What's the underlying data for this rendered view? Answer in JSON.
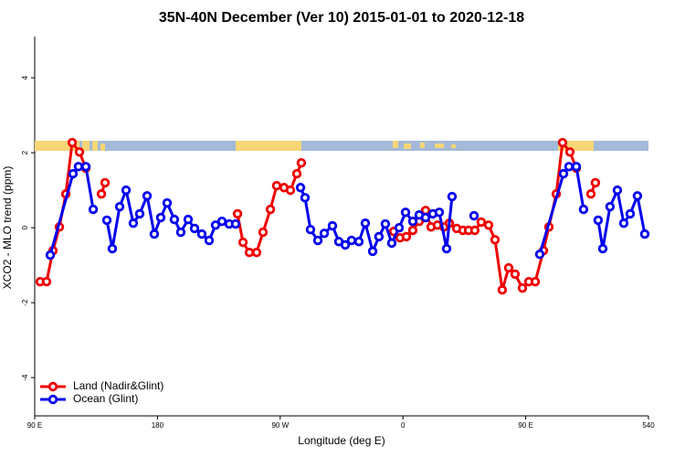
{
  "chart_data": {
    "type": "line",
    "title": "35N-40N December (Ver 10)   2015-01-01 to 2020-12-18",
    "x_label": "Longitude (deg E)",
    "y_label": "XCO2 - MLO trend (ppm)",
    "xlim": [
      90,
      540
    ],
    "xticks": [
      {
        "value": 90,
        "label": "90 E"
      },
      180,
      {
        "value": 270,
        "label": "90 W"
      },
      {
        "value": 360,
        "label": "0"
      },
      {
        "value": 450,
        "label": "90 E"
      },
      540
    ],
    "ylim": [
      -5.02,
      5.1
    ],
    "yticks": [
      -4,
      -2,
      0,
      2,
      4
    ],
    "legend": "bottom-left",
    "series": [
      {
        "name": "Land (Nadir&Glint)",
        "color": "#ee0000",
        "x": [
          94.0,
          98.7,
          103.4,
          108.1,
          112.8,
          117.5,
          122.8,
          127.5,
          132,
          138.9,
          141.6,
          200,
          238.7,
          242.7,
          247.4,
          252.7,
          257.4,
          262.8,
          267.4,
          272.8,
          277.5,
          282.2,
          285.5,
          320,
          353.2,
          357.8,
          362.5,
          367.2,
          371.9,
          376.6,
          380.6,
          385.3,
          390.0,
          394.0,
          399.4,
          404.0,
          408.1,
          412.7,
          417.4,
          422.8,
          427.5,
          432.8,
          437.5,
          442.2,
          447.6,
          452.3,
          457.0,
          463.0,
          467.0,
          472.4,
          477.0,
          482.4,
          487.1,
          490,
          497.8,
          501.1
        ],
        "values": [
          -1.44,
          -1.44,
          -0.61,
          0.02,
          0.9,
          2.27,
          2.02,
          1.59,
          null,
          0.9,
          1.2,
          null,
          0.37,
          -0.39,
          -0.66,
          -0.66,
          -0.12,
          0.49,
          1.12,
          1.07,
          1.0,
          1.44,
          1.73,
          null,
          -0.1,
          -0.27,
          -0.24,
          -0.07,
          0.17,
          0.46,
          0.02,
          0.07,
          0.02,
          0.12,
          -0.02,
          -0.07,
          -0.07,
          -0.07,
          0.15,
          0.07,
          -0.32,
          -1.66,
          -1.07,
          -1.24,
          -1.61,
          -1.44,
          -1.44,
          -0.61,
          0.02,
          0.9,
          2.27,
          2.02,
          1.59,
          null,
          0.9,
          1.2
        ]
      },
      {
        "name": "Ocean (Glint)",
        "color": "#0000ee",
        "x": [
          101.4,
          118.1,
          122.1,
          127.5,
          132.9,
          135,
          142.9,
          146.9,
          152.3,
          157.0,
          162.3,
          167.0,
          172.4,
          177.7,
          182.4,
          187.1,
          192.4,
          197.1,
          202.5,
          207.2,
          212.5,
          217.9,
          222.6,
          227.3,
          232.6,
          237.3,
          260,
          284.9,
          288.2,
          292.2,
          297.6,
          302.3,
          308.3,
          313.0,
          317.7,
          322.3,
          327.7,
          332.4,
          337.8,
          342.4,
          347.1,
          351.8,
          357.2,
          361.9,
          367.2,
          371.9,
          376.6,
          381.9,
          386.6,
          392.0,
          396.0,
          400,
          412.1,
          420,
          460.3,
          477.7,
          481.7,
          487.1,
          492.4,
          495,
          503.1,
          506.5,
          511.8,
          517.2,
          521.9,
          526.6,
          531.9,
          537.3
        ],
        "values": [
          -0.73,
          1.44,
          1.63,
          1.63,
          0.49,
          null,
          0.2,
          -0.56,
          0.56,
          1.0,
          0.12,
          0.37,
          0.85,
          -0.17,
          0.27,
          0.66,
          0.22,
          -0.12,
          0.22,
          -0.02,
          -0.17,
          -0.34,
          0.07,
          0.17,
          0.1,
          0.1,
          null,
          1.07,
          0.8,
          -0.05,
          -0.34,
          -0.15,
          0.05,
          -0.37,
          -0.46,
          -0.34,
          -0.37,
          0.12,
          -0.63,
          -0.24,
          0.1,
          -0.41,
          0.0,
          0.41,
          0.17,
          0.34,
          0.27,
          0.37,
          0.41,
          -0.56,
          0.83,
          null,
          0.32,
          null,
          -0.71,
          1.44,
          1.63,
          1.63,
          0.49,
          null,
          0.2,
          -0.56,
          0.56,
          1.0,
          0.12,
          0.37,
          0.85,
          -0.17
        ]
      }
    ]
  }
}
